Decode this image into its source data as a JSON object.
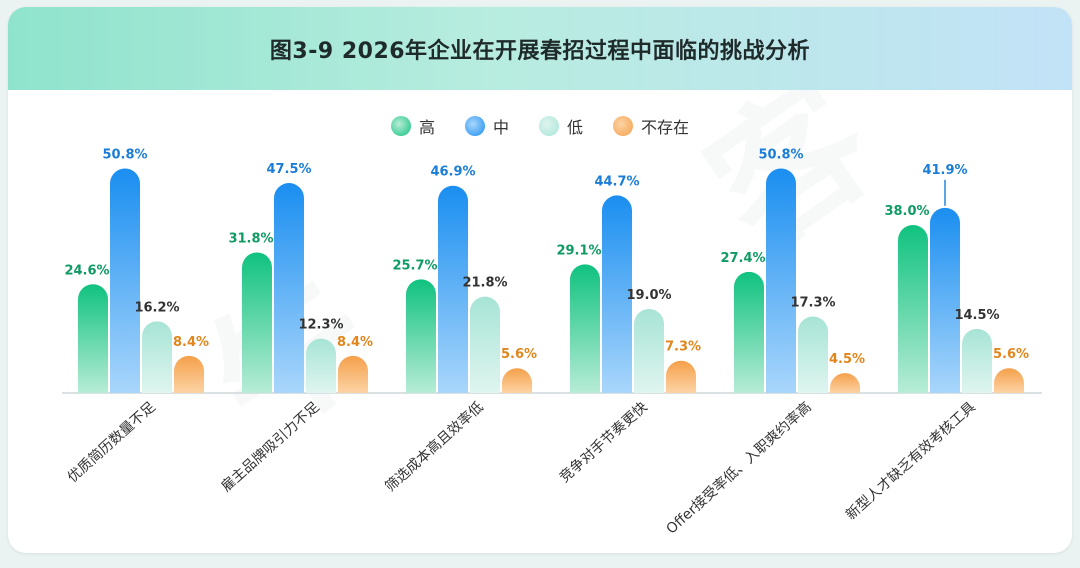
{
  "title": "图3-9 2026年企业在开展春招过程中面临的挑战分析",
  "chart_data": {
    "type": "bar",
    "title": "图3-9 2026年企业在开展春招过程中面临的挑战分析",
    "categories": [
      "优质简历数量不足",
      "雇主品牌吸引力不足",
      "筛选成本高且效率低",
      "竞争对手节奏更快",
      "Offer接受率低、入职爽约率高",
      "新型人才缺乏有效考核工具"
    ],
    "series": [
      {
        "name": "高",
        "values": [
          24.6,
          31.8,
          25.7,
          29.1,
          27.4,
          38.0
        ],
        "labels": [
          "24.6%",
          "31.8%",
          "25.7%",
          "29.1%",
          "27.4%",
          "38.0%"
        ]
      },
      {
        "name": "中",
        "values": [
          50.8,
          47.5,
          46.9,
          44.7,
          50.8,
          41.9
        ],
        "labels": [
          "50.8%",
          "47.5%",
          "46.9%",
          "44.7%",
          "50.8%",
          "41.9%"
        ]
      },
      {
        "name": "低",
        "values": [
          16.2,
          12.3,
          21.8,
          19.0,
          17.3,
          14.5
        ],
        "labels": [
          "16.2%",
          "12.3%",
          "21.8%",
          "19.0%",
          "17.3%",
          "14.5%"
        ]
      },
      {
        "name": "不存在",
        "values": [
          8.4,
          8.4,
          5.6,
          7.3,
          4.5,
          5.6
        ],
        "labels": [
          "8.4%",
          "8.4%",
          "5.6%",
          "7.3%",
          "4.5%",
          "5.6%"
        ]
      }
    ],
    "colors": {
      "高": [
        "#10c27f",
        "#b7ecd6"
      ],
      "中": [
        "#1a8ef0",
        "#a9d6fb"
      ],
      "低": [
        "#a7e4d6",
        "#dff5ef"
      ],
      "不存在": [
        "#f5a04a",
        "#fcd3a5"
      ]
    },
    "label_colors": {
      "高": "#0f9b63",
      "中": "#1a7ed8",
      "低": "#333333",
      "不存在": "#e0861c"
    },
    "ylim": [
      0,
      55
    ],
    "grid": false,
    "legend_position": "top-center"
  }
}
